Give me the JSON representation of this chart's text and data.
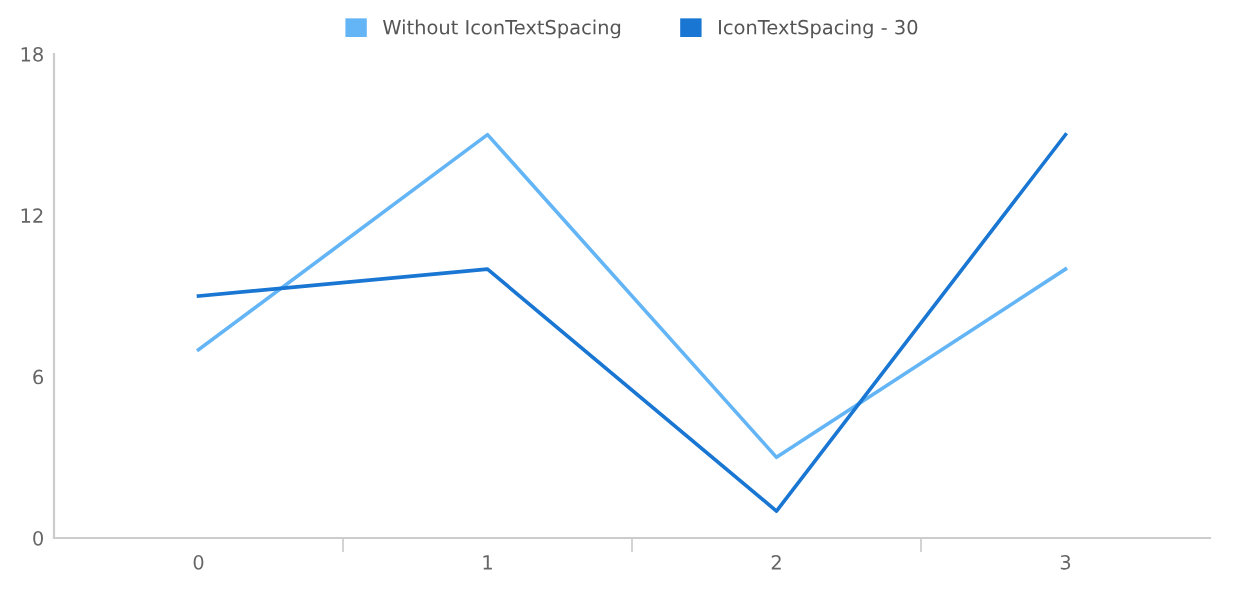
{
  "chart_data": {
    "type": "line",
    "categories": [
      "0",
      "1",
      "2",
      "3"
    ],
    "series": [
      {
        "name": "Without IconTextSpacing",
        "color": "#64b5f6",
        "values": [
          7,
          15,
          3,
          10
        ]
      },
      {
        "name": "IconTextSpacing - 30",
        "color": "#1976d2",
        "values": [
          9,
          10,
          1,
          15
        ]
      }
    ],
    "ylim": [
      0,
      18
    ],
    "yticks": [
      0,
      6,
      12,
      18
    ],
    "grid": false,
    "legend": "top",
    "marker": "none",
    "line_style": "solid"
  }
}
